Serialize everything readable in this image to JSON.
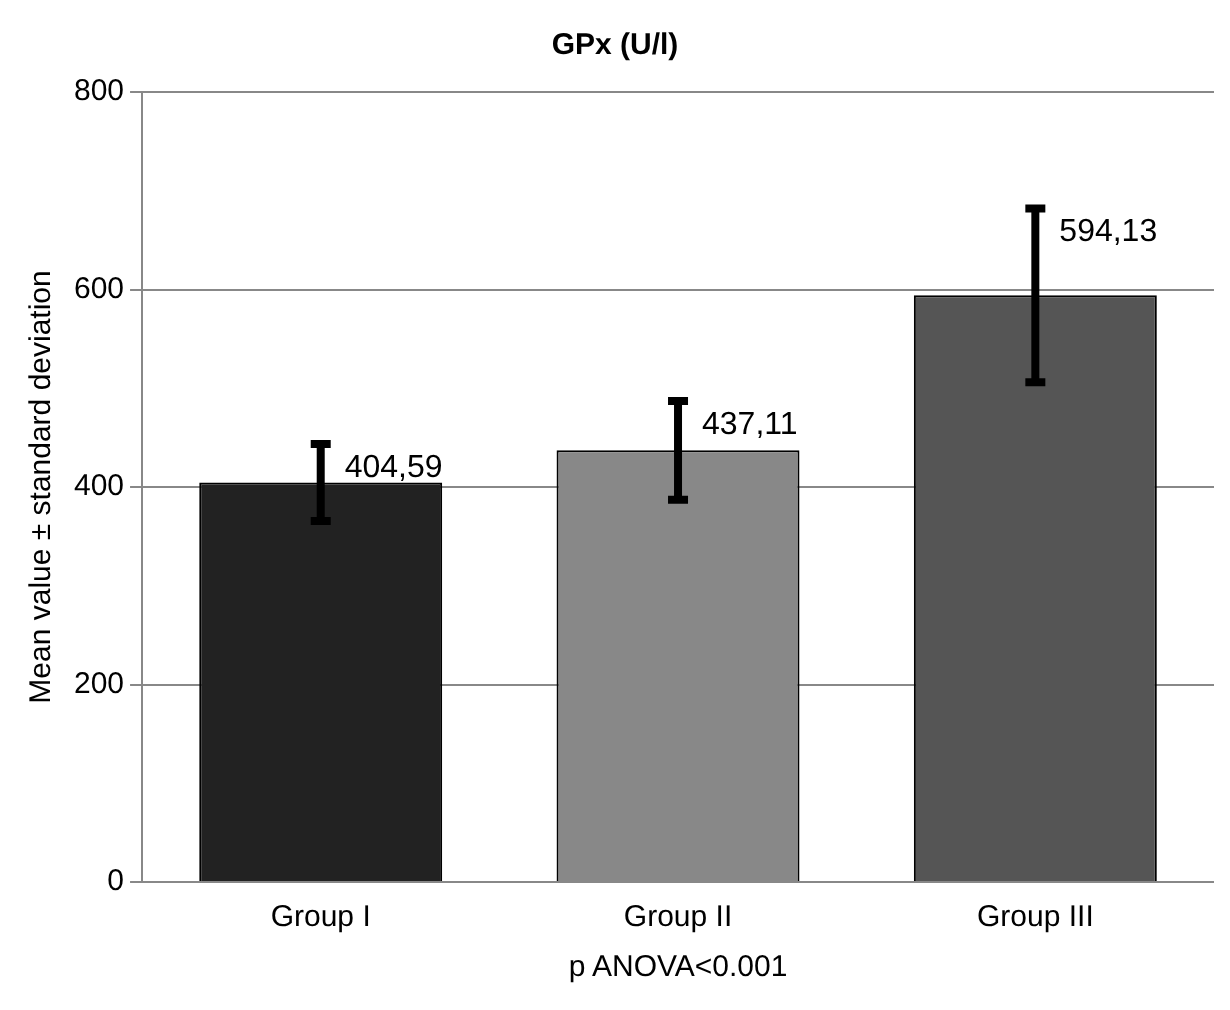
{
  "chart_data": {
    "type": "bar",
    "title": "GPx (U/l)",
    "xlabel": "p ANOVA<0.001",
    "ylabel": "Mean value ± standard deviation",
    "categories": [
      "Group I",
      "Group II",
      "Group III"
    ],
    "values": [
      404.59,
      437.11,
      594.13
    ],
    "colors": [
      "#222222",
      "#888888",
      "#555555"
    ],
    "errors": [
      39,
      50,
      88
    ],
    "value_labels": [
      "404,59",
      "437,11",
      "594,13"
    ],
    "ylim": [
      0,
      800
    ],
    "yticks": [
      0,
      200,
      400,
      600,
      800
    ],
    "grid": "y"
  }
}
